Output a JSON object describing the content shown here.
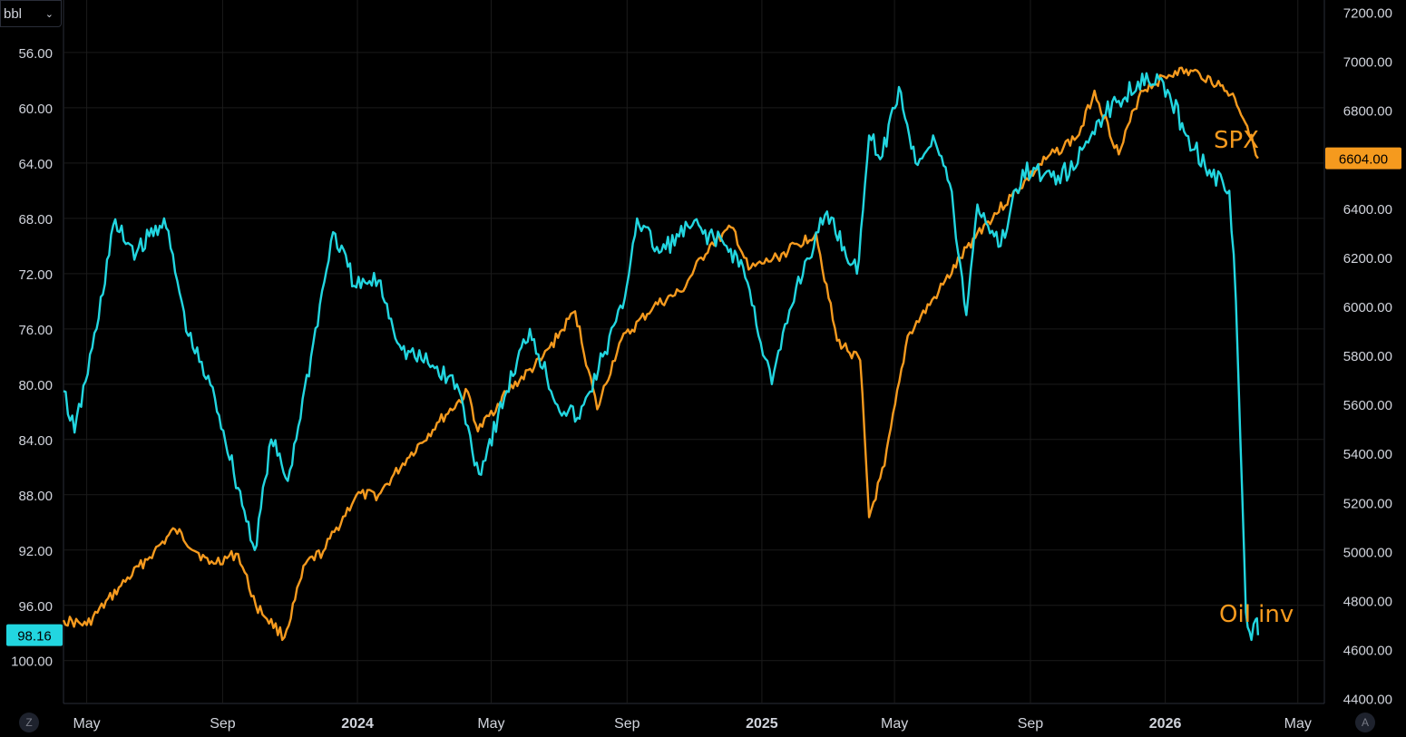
{
  "unit_selector": {
    "label": "bbl",
    "chevron_icon": "chevron-down-icon"
  },
  "corner_buttons": {
    "left": "Z",
    "right": "A"
  },
  "colors": {
    "oil": "#22d6e0",
    "spx": "#f59a1e",
    "grid": "#1b1b1b",
    "text": "#d1d4dc"
  },
  "chart_data": {
    "type": "line",
    "x_range": [
      "2023-04-10",
      "2026-05-25"
    ],
    "x_ticks": [
      {
        "date": "2023-05-01",
        "label": "May",
        "bold": false
      },
      {
        "date": "2023-09-01",
        "label": "Sep",
        "bold": false
      },
      {
        "date": "2024-01-01",
        "label": "2024",
        "bold": true
      },
      {
        "date": "2024-05-01",
        "label": "May",
        "bold": false
      },
      {
        "date": "2024-09-01",
        "label": "Sep",
        "bold": false
      },
      {
        "date": "2025-01-01",
        "label": "2025",
        "bold": true
      },
      {
        "date": "2025-05-01",
        "label": "May",
        "bold": false
      },
      {
        "date": "2025-09-01",
        "label": "Sep",
        "bold": false
      },
      {
        "date": "2026-01-01",
        "label": "2026",
        "bold": true
      },
      {
        "date": "2026-05-01",
        "label": "May",
        "bold": false
      }
    ],
    "left_axis": {
      "inverted": true,
      "ylim": [
        52.2,
        103.1
      ],
      "ticks": [
        "56.00",
        "60.00",
        "64.00",
        "68.00",
        "72.00",
        "76.00",
        "80.00",
        "84.00",
        "88.00",
        "92.00",
        "96.00",
        "100.00"
      ]
    },
    "right_axis": {
      "ylim": [
        4380,
        7250
      ],
      "ticks": [
        "7200.00",
        "7000.00",
        "6800.00",
        "6600.00",
        "6400.00",
        "6200.00",
        "6000.00",
        "5800.00",
        "5600.00",
        "5400.00",
        "5200.00",
        "5000.00",
        "4800.00",
        "4600.00",
        "4400.00"
      ]
    },
    "series": [
      {
        "name": "SPX",
        "axis": "right",
        "last_value": "6604.00",
        "points": [
          [
            "2023-04-10",
            4720
          ],
          [
            "2023-05-01",
            4700
          ],
          [
            "2023-06-01",
            4860
          ],
          [
            "2023-07-01",
            5000
          ],
          [
            "2023-07-20",
            5090
          ],
          [
            "2023-08-20",
            4950
          ],
          [
            "2023-09-15",
            4990
          ],
          [
            "2023-10-01",
            4780
          ],
          [
            "2023-10-27",
            4650
          ],
          [
            "2023-11-15",
            4950
          ],
          [
            "2023-12-01",
            5000
          ],
          [
            "2023-12-31",
            5230
          ],
          [
            "2024-01-20",
            5230
          ],
          [
            "2024-02-15",
            5380
          ],
          [
            "2024-03-15",
            5530
          ],
          [
            "2024-04-10",
            5650
          ],
          [
            "2024-04-19",
            5490
          ],
          [
            "2024-05-15",
            5650
          ],
          [
            "2024-06-15",
            5780
          ],
          [
            "2024-07-16",
            5980
          ],
          [
            "2024-08-05",
            5580
          ],
          [
            "2024-08-25",
            5850
          ],
          [
            "2024-09-25",
            6000
          ],
          [
            "2024-10-20",
            6060
          ],
          [
            "2024-11-15",
            6250
          ],
          [
            "2024-12-06",
            6320
          ],
          [
            "2024-12-20",
            6150
          ],
          [
            "2025-01-15",
            6200
          ],
          [
            "2025-02-19",
            6300
          ],
          [
            "2025-03-10",
            5860
          ],
          [
            "2025-03-31",
            5780
          ],
          [
            "2025-04-08",
            5140
          ],
          [
            "2025-04-22",
            5350
          ],
          [
            "2025-05-13",
            5880
          ],
          [
            "2025-06-10",
            6060
          ],
          [
            "2025-07-15",
            6300
          ],
          [
            "2025-08-15",
            6450
          ],
          [
            "2025-09-15",
            6600
          ],
          [
            "2025-10-15",
            6700
          ],
          [
            "2025-10-29",
            6880
          ],
          [
            "2025-11-20",
            6620
          ],
          [
            "2025-12-10",
            6880
          ],
          [
            "2026-01-10",
            6960
          ],
          [
            "2026-02-01",
            6950
          ],
          [
            "2026-02-20",
            6900
          ],
          [
            "2026-03-05",
            6850
          ],
          [
            "2026-03-20",
            6700
          ],
          [
            "2026-03-26",
            6604
          ]
        ]
      },
      {
        "name": "Oil inv",
        "axis": "left",
        "last_value": "98.16",
        "points": [
          [
            "2023-04-10",
            80.5
          ],
          [
            "2023-04-20",
            83.5
          ],
          [
            "2023-05-10",
            76.0
          ],
          [
            "2023-05-25",
            68.5
          ],
          [
            "2023-06-15",
            70.5
          ],
          [
            "2023-07-10",
            68.0
          ],
          [
            "2023-08-01",
            76.5
          ],
          [
            "2023-08-25",
            81.0
          ],
          [
            "2023-09-15",
            87.5
          ],
          [
            "2023-09-30",
            92.0
          ],
          [
            "2023-10-15",
            84.0
          ],
          [
            "2023-10-30",
            87.0
          ],
          [
            "2023-11-20",
            78.0
          ],
          [
            "2023-12-10",
            69.0
          ],
          [
            "2023-12-31",
            73.0
          ],
          [
            "2024-01-20",
            72.5
          ],
          [
            "2024-02-10",
            77.5
          ],
          [
            "2024-03-05",
            78.5
          ],
          [
            "2024-03-31",
            80.0
          ],
          [
            "2024-04-20",
            86.5
          ],
          [
            "2024-05-15",
            80.5
          ],
          [
            "2024-06-05",
            76.0
          ],
          [
            "2024-06-30",
            81.5
          ],
          [
            "2024-07-20",
            82.5
          ],
          [
            "2024-08-10",
            78.0
          ],
          [
            "2024-08-28",
            74.5
          ],
          [
            "2024-09-10",
            68.0
          ],
          [
            "2024-09-30",
            70.5
          ],
          [
            "2024-10-30",
            68.5
          ],
          [
            "2024-11-30",
            70.0
          ],
          [
            "2024-12-15",
            71.5
          ],
          [
            "2025-01-10",
            80.0
          ],
          [
            "2025-02-01",
            73.0
          ],
          [
            "2025-03-01",
            67.5
          ],
          [
            "2025-03-28",
            72.0
          ],
          [
            "2025-04-08",
            62.0
          ],
          [
            "2025-04-20",
            63.5
          ],
          [
            "2025-05-05",
            58.5
          ],
          [
            "2025-05-20",
            64.0
          ],
          [
            "2025-06-05",
            62.0
          ],
          [
            "2025-06-20",
            65.5
          ],
          [
            "2025-07-05",
            75.0
          ],
          [
            "2025-07-15",
            67.0
          ],
          [
            "2025-08-05",
            70.0
          ],
          [
            "2025-08-25",
            64.5
          ],
          [
            "2025-09-20",
            65.0
          ],
          [
            "2025-10-10",
            64.5
          ],
          [
            "2025-10-31",
            61.0
          ],
          [
            "2025-11-20",
            59.5
          ],
          [
            "2025-12-15",
            57.5
          ],
          [
            "2026-01-05",
            59.0
          ],
          [
            "2026-01-20",
            62.0
          ],
          [
            "2026-02-10",
            64.5
          ],
          [
            "2026-02-28",
            66.0
          ],
          [
            "2026-03-06",
            74.0
          ],
          [
            "2026-03-10",
            84.0
          ],
          [
            "2026-03-15",
            96.5
          ],
          [
            "2026-03-20",
            98.5
          ],
          [
            "2026-03-24",
            97.0
          ],
          [
            "2026-03-26",
            98.16
          ]
        ]
      }
    ],
    "annotations": [
      {
        "text": "SPX",
        "series": "SPX"
      },
      {
        "text": "Oil inv",
        "series": "Oil inv"
      }
    ],
    "grid": true
  }
}
